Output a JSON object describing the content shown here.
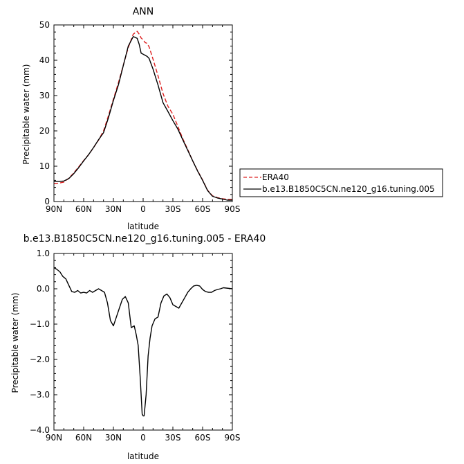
{
  "chart_data": [
    {
      "type": "line",
      "title": "ANN",
      "xlabel": "latitude",
      "ylabel": "Precipitable water (mm)",
      "xlim": [
        90,
        -90
      ],
      "ylim": [
        0,
        50
      ],
      "x_ticks": [
        90,
        60,
        30,
        0,
        -30,
        -60,
        -90
      ],
      "x_tick_labels": [
        "90N",
        "60N",
        "30N",
        "0",
        "30S",
        "60S",
        "90S"
      ],
      "y_ticks": [
        0,
        10,
        20,
        30,
        40,
        50
      ],
      "y_tick_labels": [
        "0",
        "10",
        "20",
        "30",
        "40",
        "50"
      ],
      "legend_position": "outside-right",
      "series": [
        {
          "name": "ERA40",
          "color": "#dd2020",
          "dash": "dashed",
          "x": [
            90,
            85,
            80,
            75,
            70,
            65,
            60,
            55,
            50,
            45,
            40,
            35,
            30,
            25,
            20,
            15,
            10,
            6,
            4,
            2,
            0,
            -2,
            -4,
            -6,
            -10,
            -15,
            -20,
            -25,
            -30,
            -35,
            -40,
            -45,
            -50,
            -55,
            -60,
            -65,
            -70,
            -75,
            -80,
            -85,
            -90
          ],
          "y": [
            5.1,
            5.2,
            5.5,
            6.6,
            8.1,
            9.8,
            11.6,
            13.3,
            15.3,
            17.4,
            20.0,
            24.3,
            29.0,
            33.6,
            38.6,
            43.6,
            47.4,
            48.2,
            47.4,
            46.3,
            45.8,
            45.0,
            44.8,
            43.8,
            40.3,
            35.6,
            30.6,
            27.0,
            24.7,
            21.3,
            17.8,
            14.7,
            11.5,
            8.7,
            6.1,
            3.2,
            1.6,
            1.1,
            0.8,
            0.6,
            0.6
          ]
        },
        {
          "name": "b.e13.B1850C5CN.ne120_g16.tuning.005",
          "color": "#000000",
          "dash": "solid",
          "x": [
            90,
            85,
            80,
            75,
            70,
            65,
            60,
            55,
            50,
            45,
            40,
            35,
            30,
            25,
            20,
            15,
            10,
            6,
            4,
            2,
            0,
            -2,
            -4,
            -6,
            -10,
            -15,
            -20,
            -25,
            -30,
            -35,
            -40,
            -45,
            -50,
            -55,
            -60,
            -65,
            -70,
            -75,
            -80,
            -85,
            -90
          ],
          "y": [
            5.7,
            5.7,
            5.8,
            6.5,
            7.9,
            9.6,
            11.5,
            13.3,
            15.3,
            17.5,
            19.5,
            23.7,
            28.6,
            33.0,
            38.5,
            44.0,
            46.7,
            46.2,
            44.5,
            42.0,
            41.7,
            41.4,
            41.1,
            40.5,
            37.5,
            33.0,
            28.0,
            25.5,
            22.9,
            20.5,
            17.5,
            14.5,
            11.5,
            8.6,
            6.0,
            3.1,
            1.5,
            1.0,
            0.7,
            0.4,
            0.4
          ]
        }
      ]
    },
    {
      "type": "line",
      "title": "b.e13.B1850C5CN.ne120_g16.tuning.005 - ERA40",
      "xlabel": "latitude",
      "ylabel": "Precipitable water (mm)",
      "xlim": [
        90,
        -90
      ],
      "ylim": [
        -4.0,
        1.0
      ],
      "x_ticks": [
        90,
        60,
        30,
        0,
        -30,
        -60,
        -90
      ],
      "x_tick_labels": [
        "90N",
        "60N",
        "30N",
        "0",
        "30S",
        "60S",
        "90S"
      ],
      "y_ticks": [
        1.0,
        0.0,
        -1.0,
        -2.0,
        -3.0,
        -4.0
      ],
      "y_tick_labels": [
        "1.0",
        "0.0",
        "−1.0",
        "−2.0",
        "−3.0",
        "−4.0"
      ],
      "series": [
        {
          "name": "",
          "color": "#000000",
          "dash": "solid",
          "x": [
            90,
            87,
            84,
            81,
            78,
            75,
            72,
            69,
            66,
            63,
            60,
            57,
            54,
            51,
            48,
            45,
            42,
            39,
            36,
            33,
            30,
            27,
            24,
            21,
            18,
            15,
            12,
            9,
            7,
            5,
            3,
            1,
            0,
            -1,
            -3,
            -5,
            -7,
            -9,
            -12,
            -15,
            -18,
            -21,
            -24,
            -27,
            -30,
            -33,
            -36,
            -39,
            -42,
            -45,
            -48,
            -51,
            -54,
            -57,
            -60,
            -63,
            -66,
            -69,
            -72,
            -75,
            -78,
            -81,
            -84,
            -87,
            -90
          ],
          "y": [
            0.6,
            0.55,
            0.48,
            0.35,
            0.28,
            0.1,
            -0.08,
            -0.1,
            -0.05,
            -0.12,
            -0.1,
            -0.12,
            -0.05,
            -0.1,
            -0.05,
            0.0,
            -0.05,
            -0.1,
            -0.4,
            -0.9,
            -1.05,
            -0.8,
            -0.55,
            -0.3,
            -0.22,
            -0.4,
            -1.1,
            -1.05,
            -1.3,
            -1.6,
            -2.5,
            -3.55,
            -3.6,
            -3.6,
            -3.0,
            -1.9,
            -1.4,
            -1.05,
            -0.85,
            -0.8,
            -0.4,
            -0.2,
            -0.15,
            -0.25,
            -0.45,
            -0.5,
            -0.55,
            -0.4,
            -0.25,
            -0.1,
            0.0,
            0.08,
            0.1,
            0.08,
            -0.02,
            -0.08,
            -0.1,
            -0.1,
            -0.05,
            -0.02,
            0.0,
            0.03,
            0.02,
            0.01,
            0.0
          ]
        }
      ]
    }
  ]
}
